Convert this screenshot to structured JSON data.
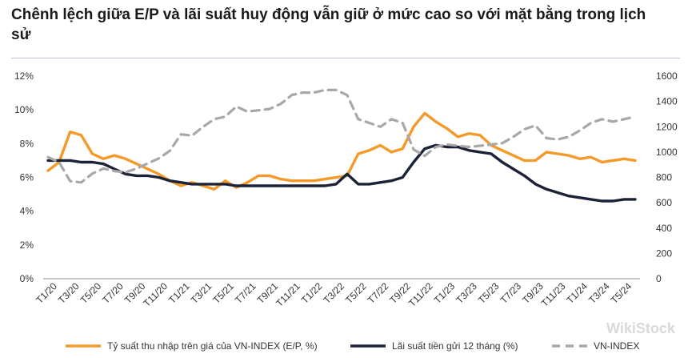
{
  "title": "Chênh lệch giữa E/P và lãi suất huy động vẫn giữ ở mức cao so với mặt bằng trong lịch sử",
  "watermark": "WikiStock",
  "colors": {
    "ep": "#f39a2b",
    "rate": "#1b2238",
    "vnindex": "#a8a8a8",
    "rule": "#b9bfd8"
  },
  "chart_data": {
    "type": "line",
    "title": "Chênh lệch giữa E/P và lãi suất huy động vẫn giữ ở mức cao so với mặt bằng trong lịch sử",
    "legend_position": "bottom",
    "grid": false,
    "y_left": {
      "ticks": [
        "12%",
        "10%",
        "8%",
        "6%",
        "4%",
        "2%",
        "0%"
      ],
      "range": [
        0,
        12
      ]
    },
    "y_right": {
      "ticks": [
        "1600",
        "1400",
        "1200",
        "1000",
        "800",
        "600",
        "400",
        "200",
        "0"
      ],
      "range": [
        0,
        1600
      ]
    },
    "x_ticks": [
      "T1/20",
      "T3/20",
      "T5/20",
      "T7/20",
      "T9/20",
      "T11/20",
      "T1/21",
      "T3/21",
      "T5/21",
      "T7/21",
      "T9/21",
      "T11/21",
      "T1/22",
      "T3/22",
      "T5/22",
      "T7/22",
      "T9/22",
      "T11/22",
      "T1/23",
      "T3/23",
      "T5/23",
      "T7/23",
      "T9/23",
      "T11/23",
      "T1/24",
      "T3/24",
      "T5/24"
    ],
    "series": [
      {
        "name": "Tỷ suất thu nhập trên giá của VN-INDEX (E/P, %)",
        "axis": "left",
        "style": "solid",
        "values": [
          6.4,
          6.9,
          8.7,
          8.5,
          7.4,
          7.1,
          7.3,
          7.1,
          6.8,
          6.5,
          6.2,
          5.8,
          5.5,
          5.7,
          5.5,
          5.3,
          5.8,
          5.4,
          5.7,
          6.1,
          6.1,
          5.9,
          5.8,
          5.8,
          5.8,
          5.9,
          6.0,
          6.1,
          7.4,
          7.6,
          7.9,
          7.5,
          7.7,
          9.0,
          9.8,
          9.3,
          8.9,
          8.4,
          8.6,
          8.5,
          7.9,
          7.6,
          7.3,
          7.0,
          7.0,
          7.5,
          7.4,
          7.3,
          7.1,
          7.2,
          6.9,
          7.0,
          7.1,
          7.0
        ]
      },
      {
        "name": "Lãi suất tiền gửi 12 tháng (%)",
        "axis": "left",
        "style": "solid",
        "values": [
          7.0,
          7.0,
          7.0,
          6.9,
          6.9,
          6.8,
          6.5,
          6.2,
          6.1,
          6.1,
          6.0,
          5.8,
          5.7,
          5.6,
          5.6,
          5.6,
          5.6,
          5.5,
          5.5,
          5.5,
          5.5,
          5.5,
          5.5,
          5.5,
          5.5,
          5.5,
          5.6,
          6.2,
          5.6,
          5.6,
          5.7,
          5.8,
          6.0,
          6.9,
          7.7,
          7.9,
          7.8,
          7.8,
          7.6,
          7.5,
          7.4,
          6.9,
          6.5,
          6.1,
          5.6,
          5.3,
          5.1,
          4.9,
          4.8,
          4.7,
          4.6,
          4.6,
          4.7,
          4.7
        ]
      },
      {
        "name": "VN-INDEX",
        "axis": "right",
        "style": "dashed",
        "values": [
          960,
          920,
          770,
          760,
          830,
          870,
          850,
          840,
          870,
          910,
          950,
          1010,
          1140,
          1130,
          1200,
          1260,
          1280,
          1360,
          1320,
          1330,
          1340,
          1380,
          1450,
          1470,
          1470,
          1490,
          1490,
          1450,
          1260,
          1230,
          1200,
          1260,
          1230,
          1020,
          970,
          1040,
          1060,
          1050,
          1040,
          1050,
          1060,
          1070,
          1120,
          1180,
          1210,
          1110,
          1100,
          1120,
          1170,
          1230,
          1260,
          1240,
          1260,
          1280
        ]
      }
    ]
  }
}
